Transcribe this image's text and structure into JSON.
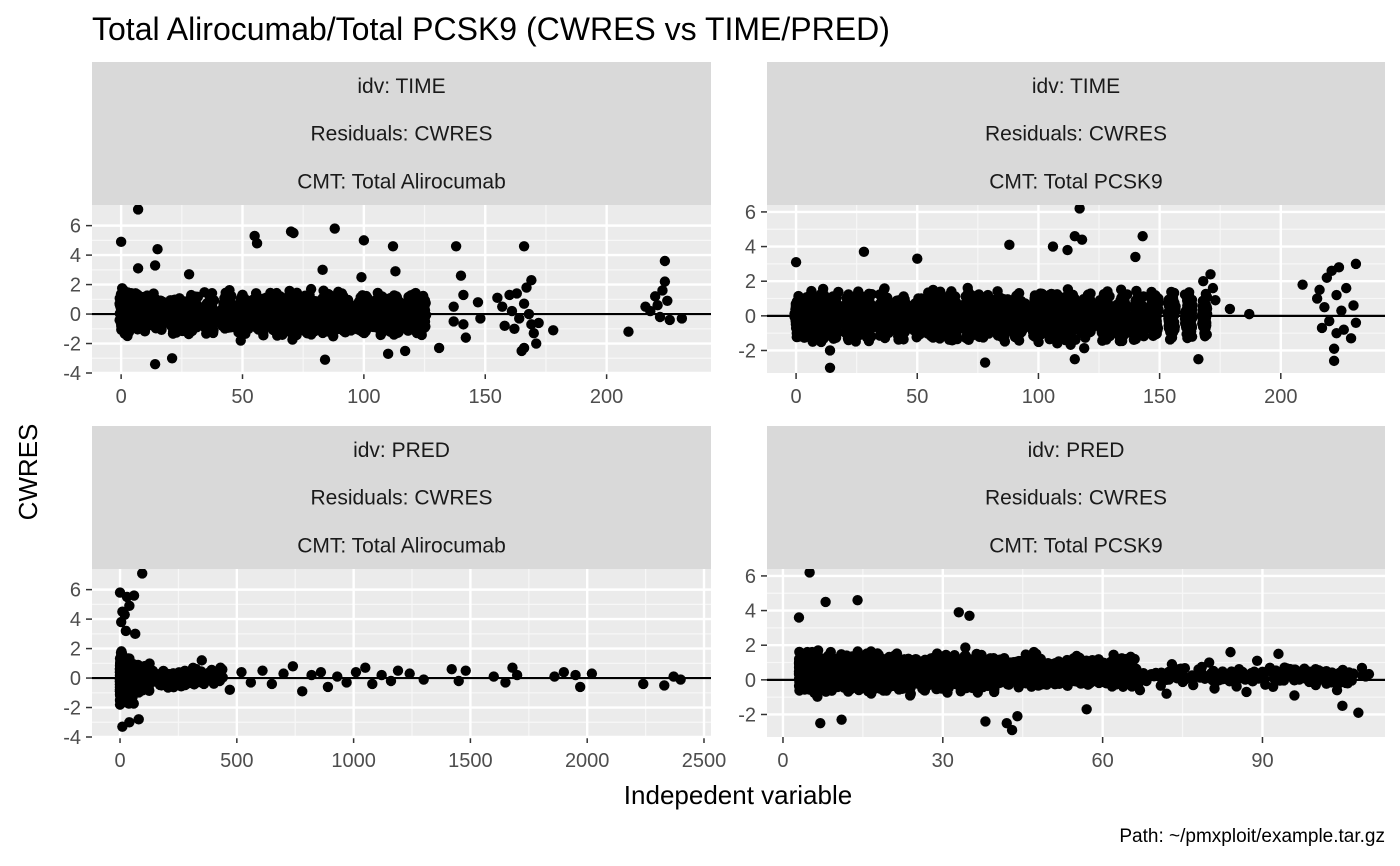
{
  "chart_data": {
    "type": "scatter",
    "title": "Total Alirocumab/Total PCSK9 (CWRES vs TIME/PRED)",
    "xlabel": "Indepedent variable",
    "ylabel": "CWRES",
    "caption": "Path: ~/pmxploit/example.tar.gz",
    "reference_line_y": 0,
    "grid": true,
    "panels": [
      {
        "strips": [
          "idv: TIME",
          "Residuals: CWRES",
          "CMT: Total Alirocumab"
        ],
        "xlim": [
          -12,
          243
        ],
        "ylim": [
          -4,
          7.4
        ],
        "xticks": [
          0,
          50,
          100,
          150,
          200
        ],
        "yticks": [
          -4,
          -2,
          0,
          2,
          4,
          6
        ],
        "cluster_x": [
          0,
          1,
          2,
          3,
          4,
          6,
          7,
          8,
          10,
          11,
          14,
          15,
          16,
          17,
          21,
          22,
          24,
          25,
          28,
          29,
          30,
          31,
          35,
          36,
          37,
          38,
          42,
          43,
          44,
          45,
          49,
          50,
          51,
          52,
          55,
          56,
          57,
          58,
          59,
          62,
          63,
          64,
          65,
          66,
          69,
          70,
          71,
          72,
          73,
          76,
          77,
          78,
          79,
          80,
          83,
          84,
          85,
          86,
          87,
          90,
          91,
          92,
          93,
          94,
          98,
          99,
          100,
          101,
          104,
          105,
          106,
          107,
          108,
          111,
          112,
          113,
          114,
          115,
          118,
          119,
          120,
          121,
          122,
          124,
          125
        ],
        "cluster_spread": 1.5,
        "points": [
          {
            "x": 7,
            "y": 7.1
          },
          {
            "x": 0,
            "y": 4.9
          },
          {
            "x": 15,
            "y": 4.4
          },
          {
            "x": 7,
            "y": 3.1
          },
          {
            "x": 14,
            "y": 3.3
          },
          {
            "x": 28,
            "y": 2.7
          },
          {
            "x": 55,
            "y": 5.3
          },
          {
            "x": 56,
            "y": 4.8
          },
          {
            "x": 70,
            "y": 5.6
          },
          {
            "x": 71,
            "y": 5.5
          },
          {
            "x": 88,
            "y": 5.8
          },
          {
            "x": 100,
            "y": 5.0
          },
          {
            "x": 112,
            "y": 4.6
          },
          {
            "x": 83,
            "y": 3.0
          },
          {
            "x": 140,
            "y": 2.6
          },
          {
            "x": 138,
            "y": 4.6
          },
          {
            "x": 166,
            "y": 4.6
          },
          {
            "x": 169,
            "y": 2.3
          },
          {
            "x": 99,
            "y": 2.5
          },
          {
            "x": 113,
            "y": 2.9
          },
          {
            "x": 14,
            "y": -3.4
          },
          {
            "x": 21,
            "y": -3.0
          },
          {
            "x": 84,
            "y": -3.1
          },
          {
            "x": 110,
            "y": -2.7
          },
          {
            "x": 117,
            "y": -2.5
          },
          {
            "x": 131,
            "y": -2.3
          },
          {
            "x": 137,
            "y": 0.5
          },
          {
            "x": 137,
            "y": -0.5
          },
          {
            "x": 141,
            "y": 1.3
          },
          {
            "x": 141,
            "y": -0.7
          },
          {
            "x": 142,
            "y": -1.6
          },
          {
            "x": 147,
            "y": 0.8
          },
          {
            "x": 148,
            "y": -0.3
          },
          {
            "x": 155,
            "y": 1.1
          },
          {
            "x": 157,
            "y": 0.5
          },
          {
            "x": 158,
            "y": -0.8
          },
          {
            "x": 160,
            "y": 1.3
          },
          {
            "x": 161,
            "y": 0.2
          },
          {
            "x": 162,
            "y": -1.0
          },
          {
            "x": 163,
            "y": 1.4
          },
          {
            "x": 164,
            "y": -0.3
          },
          {
            "x": 165,
            "y": -2.5
          },
          {
            "x": 166,
            "y": -2.3
          },
          {
            "x": 166,
            "y": 0.7
          },
          {
            "x": 167,
            "y": 1.8
          },
          {
            "x": 168,
            "y": 0.0
          },
          {
            "x": 169,
            "y": -0.7
          },
          {
            "x": 170,
            "y": -1.3
          },
          {
            "x": 171,
            "y": -2.0
          },
          {
            "x": 172,
            "y": -0.6
          },
          {
            "x": 178,
            "y": -1.1
          },
          {
            "x": 209,
            "y": -1.2
          },
          {
            "x": 216,
            "y": 0.5
          },
          {
            "x": 218,
            "y": 0.2
          },
          {
            "x": 220,
            "y": 1.2
          },
          {
            "x": 221,
            "y": 0.6
          },
          {
            "x": 222,
            "y": -0.2
          },
          {
            "x": 223,
            "y": 1.6
          },
          {
            "x": 224,
            "y": 2.2
          },
          {
            "x": 224,
            "y": 3.6
          },
          {
            "x": 225,
            "y": 0.9
          },
          {
            "x": 226,
            "y": -0.4
          },
          {
            "x": 231,
            "y": -0.3
          }
        ]
      },
      {
        "strips": [
          "idv: TIME",
          "Residuals: CWRES",
          "CMT: Total PCSK9"
        ],
        "xlim": [
          -12,
          243
        ],
        "ylim": [
          -3.3,
          6.4
        ],
        "xticks": [
          0,
          50,
          100,
          150,
          200
        ],
        "yticks": [
          -2,
          0,
          2,
          4,
          6
        ],
        "cluster_x": [
          0,
          1,
          2,
          3,
          4,
          6,
          7,
          8,
          10,
          11,
          14,
          15,
          16,
          17,
          21,
          22,
          24,
          25,
          28,
          29,
          30,
          31,
          35,
          36,
          37,
          38,
          42,
          43,
          44,
          45,
          49,
          50,
          51,
          52,
          55,
          56,
          57,
          58,
          59,
          62,
          63,
          64,
          65,
          66,
          69,
          70,
          71,
          72,
          73,
          76,
          77,
          78,
          79,
          80,
          83,
          84,
          85,
          86,
          87,
          90,
          91,
          92,
          93,
          94,
          98,
          99,
          100,
          101,
          104,
          105,
          106,
          107,
          108,
          111,
          112,
          113,
          114,
          115,
          118,
          119,
          120,
          121,
          122,
          126,
          127,
          128,
          129,
          133,
          134,
          135,
          136,
          140,
          141,
          142,
          143,
          147,
          148,
          149,
          154,
          155,
          156,
          161,
          162,
          163,
          168,
          169
        ],
        "cluster_spread": 1.3,
        "points": [
          {
            "x": 117,
            "y": 6.2
          },
          {
            "x": 115,
            "y": 4.6
          },
          {
            "x": 118,
            "y": 4.4
          },
          {
            "x": 143,
            "y": 4.6
          },
          {
            "x": 88,
            "y": 4.1
          },
          {
            "x": 106,
            "y": 4.0
          },
          {
            "x": 28,
            "y": 3.7
          },
          {
            "x": 0,
            "y": 3.1
          },
          {
            "x": 50,
            "y": 3.3
          },
          {
            "x": 112,
            "y": 3.8
          },
          {
            "x": 140,
            "y": 3.4
          },
          {
            "x": 14,
            "y": -3.0
          },
          {
            "x": 78,
            "y": -2.7
          },
          {
            "x": 115,
            "y": -2.5
          },
          {
            "x": 166,
            "y": -2.5
          },
          {
            "x": 14,
            "y": -2.0
          },
          {
            "x": 171,
            "y": 2.4
          },
          {
            "x": 172,
            "y": 1.6
          },
          {
            "x": 173,
            "y": 0.9
          },
          {
            "x": 168,
            "y": 2.0
          },
          {
            "x": 179,
            "y": 0.4
          },
          {
            "x": 187,
            "y": 0.1
          },
          {
            "x": 209,
            "y": 1.8
          },
          {
            "x": 215,
            "y": 1.0
          },
          {
            "x": 216,
            "y": 1.5
          },
          {
            "x": 217,
            "y": -0.7
          },
          {
            "x": 218,
            "y": 0.5
          },
          {
            "x": 219,
            "y": 2.2
          },
          {
            "x": 220,
            "y": -0.3
          },
          {
            "x": 221,
            "y": 2.6
          },
          {
            "x": 222,
            "y": -2.6
          },
          {
            "x": 222,
            "y": -1.9
          },
          {
            "x": 223,
            "y": 1.2
          },
          {
            "x": 223,
            "y": -1.0
          },
          {
            "x": 224,
            "y": 2.8
          },
          {
            "x": 225,
            "y": 0.3
          },
          {
            "x": 226,
            "y": -0.8
          },
          {
            "x": 227,
            "y": 1.6
          },
          {
            "x": 229,
            "y": -1.3
          },
          {
            "x": 230,
            "y": 0.6
          },
          {
            "x": 231,
            "y": 3.0
          },
          {
            "x": 231,
            "y": -0.4
          }
        ]
      },
      {
        "strips": [
          "idv: PRED",
          "Residuals: CWRES",
          "CMT: Total Alirocumab"
        ],
        "xlim": [
          -120,
          2530
        ],
        "ylim": [
          -4,
          7.4
        ],
        "xticks": [
          0,
          500,
          1000,
          1500,
          2000,
          2500
        ],
        "yticks": [
          -4,
          -2,
          0,
          2,
          4,
          6
        ],
        "points": [
          {
            "x": 95,
            "y": 7.1
          },
          {
            "x": 0,
            "y": 5.8
          },
          {
            "x": 30,
            "y": 5.5
          },
          {
            "x": 60,
            "y": 5.6
          },
          {
            "x": 40,
            "y": 4.9
          },
          {
            "x": 10,
            "y": 4.5
          },
          {
            "x": 20,
            "y": 4.3
          },
          {
            "x": 5,
            "y": 3.8
          },
          {
            "x": 25,
            "y": 3.2
          },
          {
            "x": 65,
            "y": 3.0
          },
          {
            "x": 10,
            "y": -3.3
          },
          {
            "x": 40,
            "y": -3.0
          },
          {
            "x": 80,
            "y": -2.8
          },
          {
            "x": 350,
            "y": 1.2
          },
          {
            "x": 430,
            "y": 0.7
          },
          {
            "x": 470,
            "y": -0.8
          },
          {
            "x": 520,
            "y": 0.4
          },
          {
            "x": 560,
            "y": -0.3
          },
          {
            "x": 610,
            "y": 0.5
          },
          {
            "x": 650,
            "y": -0.4
          },
          {
            "x": 700,
            "y": 0.3
          },
          {
            "x": 740,
            "y": 0.8
          },
          {
            "x": 780,
            "y": -0.9
          },
          {
            "x": 820,
            "y": 0.2
          },
          {
            "x": 860,
            "y": 0.4
          },
          {
            "x": 890,
            "y": -0.6
          },
          {
            "x": 930,
            "y": 0.1
          },
          {
            "x": 970,
            "y": -0.3
          },
          {
            "x": 1010,
            "y": 0.4
          },
          {
            "x": 1050,
            "y": 0.7
          },
          {
            "x": 1080,
            "y": -0.4
          },
          {
            "x": 1120,
            "y": 0.2
          },
          {
            "x": 1160,
            "y": -0.2
          },
          {
            "x": 1190,
            "y": 0.5
          },
          {
            "x": 1240,
            "y": 0.3
          },
          {
            "x": 1300,
            "y": -0.1
          },
          {
            "x": 1420,
            "y": 0.6
          },
          {
            "x": 1450,
            "y": -0.2
          },
          {
            "x": 1480,
            "y": 0.5
          },
          {
            "x": 1600,
            "y": 0.1
          },
          {
            "x": 1650,
            "y": -0.3
          },
          {
            "x": 1680,
            "y": 0.7
          },
          {
            "x": 1700,
            "y": 0.2
          },
          {
            "x": 1860,
            "y": 0.1
          },
          {
            "x": 1900,
            "y": 0.4
          },
          {
            "x": 1950,
            "y": 0.2
          },
          {
            "x": 1970,
            "y": -0.6
          },
          {
            "x": 2020,
            "y": 0.3
          },
          {
            "x": 2240,
            "y": -0.4
          },
          {
            "x": 2330,
            "y": -0.5
          },
          {
            "x": 2370,
            "y": 0.1
          },
          {
            "x": 2400,
            "y": -0.1
          }
        ]
      },
      {
        "strips": [
          "idv: PRED",
          "Residuals: CWRES",
          "CMT: Total PCSK9"
        ],
        "xlim": [
          -3,
          113
        ],
        "ylim": [
          -3.3,
          6.4
        ],
        "xticks": [
          0,
          30,
          60,
          90
        ],
        "yticks": [
          -2,
          0,
          2,
          4,
          6
        ],
        "points": [
          {
            "x": 5,
            "y": 6.2
          },
          {
            "x": 8,
            "y": 4.5
          },
          {
            "x": 14,
            "y": 4.6
          },
          {
            "x": 3,
            "y": 3.6
          },
          {
            "x": 33,
            "y": 3.9
          },
          {
            "x": 35,
            "y": 3.7
          },
          {
            "x": 7,
            "y": -2.5
          },
          {
            "x": 11,
            "y": -2.3
          },
          {
            "x": 38,
            "y": -2.4
          },
          {
            "x": 42,
            "y": -2.5
          },
          {
            "x": 43,
            "y": -2.9
          },
          {
            "x": 44,
            "y": -2.1
          },
          {
            "x": 57,
            "y": -1.7
          },
          {
            "x": 66,
            "y": 1.2
          },
          {
            "x": 67,
            "y": -0.6
          },
          {
            "x": 70,
            "y": 0.4
          },
          {
            "x": 72,
            "y": -0.8
          },
          {
            "x": 73,
            "y": 0.9
          },
          {
            "x": 75,
            "y": 0.2
          },
          {
            "x": 77,
            "y": -0.3
          },
          {
            "x": 78,
            "y": 0.6
          },
          {
            "x": 80,
            "y": 1.0
          },
          {
            "x": 81,
            "y": -0.5
          },
          {
            "x": 83,
            "y": 0.3
          },
          {
            "x": 84,
            "y": 1.6
          },
          {
            "x": 86,
            "y": 0.1
          },
          {
            "x": 87,
            "y": -0.7
          },
          {
            "x": 89,
            "y": 1.1
          },
          {
            "x": 90,
            "y": 0.4
          },
          {
            "x": 92,
            "y": -0.4
          },
          {
            "x": 93,
            "y": 1.5
          },
          {
            "x": 95,
            "y": 0.6
          },
          {
            "x": 96,
            "y": -0.9
          },
          {
            "x": 98,
            "y": 0.2
          },
          {
            "x": 100,
            "y": -0.3
          },
          {
            "x": 102,
            "y": 0.5
          },
          {
            "x": 104,
            "y": -0.6
          },
          {
            "x": 105,
            "y": -1.5
          },
          {
            "x": 106,
            "y": -0.2
          },
          {
            "x": 108,
            "y": -1.9
          }
        ]
      }
    ]
  }
}
